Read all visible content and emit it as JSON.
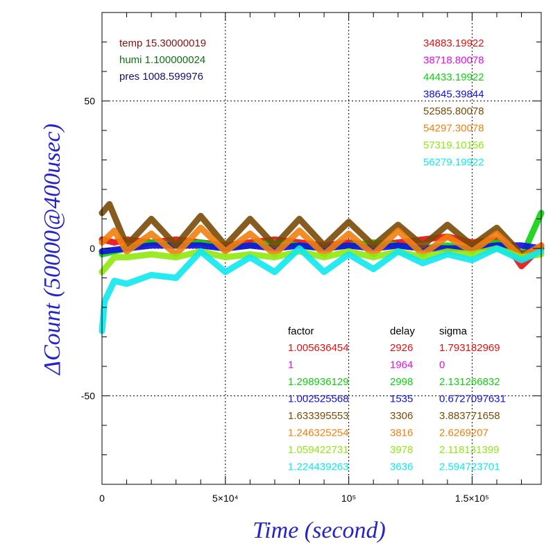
{
  "chart_data": {
    "type": "line",
    "xlabel": "Time (second)",
    "ylabel": "ΔCount (50000@400usec)",
    "xlim": [
      0,
      178000
    ],
    "ylim": [
      -80,
      80
    ],
    "grid": true,
    "x_ticks": [
      {
        "value": 0,
        "label": "0"
      },
      {
        "value": 50000,
        "label": "5×10⁴"
      },
      {
        "value": 100000,
        "label": "10⁵"
      },
      {
        "value": 150000,
        "label": "1.5×10⁵"
      }
    ],
    "y_ticks": [
      {
        "value": 50,
        "label": "50"
      },
      {
        "value": 0,
        "label": "0"
      },
      {
        "value": -50,
        "label": "-50"
      }
    ],
    "env": [
      {
        "text": "temp 15.30000019",
        "color": "#8b1010"
      },
      {
        "text": "humi 1.100000024",
        "color": "#107010"
      },
      {
        "text": "pres 1008.599976",
        "color": "#101070"
      }
    ],
    "table_headers": {
      "factor": "factor",
      "delay": "delay",
      "sigma": "sigma"
    },
    "series": [
      {
        "count": "34883.19922",
        "factor": "1.005636454",
        "delay": "2926",
        "sigma": "1.793182969",
        "color": "#e41010",
        "x": [
          0,
          5000,
          10000,
          20000,
          30000,
          40000,
          50000,
          60000,
          70000,
          80000,
          90000,
          100000,
          110000,
          120000,
          130000,
          140000,
          150000,
          160000,
          165000,
          170000,
          175000,
          178000
        ],
        "y": [
          3,
          2,
          3,
          2,
          3,
          2,
          1,
          2,
          3,
          2,
          1,
          2,
          1,
          2,
          3,
          4,
          2,
          3,
          0,
          -6,
          -2,
          1
        ]
      },
      {
        "count": "38718.80078",
        "factor": "1",
        "delay": "1964",
        "sigma": "0",
        "color": "#e010e0",
        "x": [],
        "y": []
      },
      {
        "count": "44433.19922",
        "factor": "1.298936129",
        "delay": "2998",
        "sigma": "2.131266832",
        "color": "#10d010",
        "x": [
          0,
          5000,
          10000,
          20000,
          30000,
          40000,
          50000,
          60000,
          70000,
          80000,
          90000,
          100000,
          110000,
          120000,
          130000,
          140000,
          150000,
          160000,
          170000,
          178000
        ],
        "y": [
          -2,
          -1,
          0,
          2,
          1,
          2,
          0,
          1,
          2,
          1,
          0,
          1,
          2,
          1,
          0,
          1,
          0,
          2,
          -3,
          12
        ]
      },
      {
        "count": "38645.39844",
        "factor": "1.002525568",
        "delay": "1535",
        "sigma": "0.6727097631",
        "color": "#1010e0",
        "x": [
          0,
          10000,
          20000,
          30000,
          40000,
          50000,
          60000,
          70000,
          80000,
          90000,
          100000,
          110000,
          120000,
          130000,
          140000,
          150000,
          160000,
          170000,
          178000
        ],
        "y": [
          -1,
          0,
          1,
          1,
          1,
          0,
          1,
          0,
          1,
          0,
          1,
          0,
          1,
          0,
          0,
          0,
          1,
          1,
          0
        ]
      },
      {
        "count": "52585.80078",
        "factor": "1.633395553",
        "delay": "3306",
        "sigma": "3.883771658",
        "color": "#7a4a08",
        "x": [
          0,
          3000,
          10000,
          20000,
          30000,
          40000,
          50000,
          60000,
          70000,
          80000,
          90000,
          100000,
          110000,
          120000,
          130000,
          140000,
          150000,
          160000,
          170000,
          178000
        ],
        "y": [
          12,
          15,
          1,
          10,
          1,
          11,
          1,
          10,
          1,
          10,
          1,
          9,
          1,
          8,
          1,
          8,
          1,
          7,
          -2,
          0
        ]
      },
      {
        "count": "54297.30078",
        "factor": "1.246325254",
        "delay": "3816",
        "sigma": "2.6269207",
        "color": "#f08010",
        "x": [
          0,
          5000,
          10000,
          20000,
          30000,
          40000,
          50000,
          60000,
          70000,
          80000,
          90000,
          100000,
          110000,
          120000,
          130000,
          140000,
          150000,
          160000,
          170000,
          178000
        ],
        "y": [
          2,
          6,
          -1,
          5,
          -2,
          7,
          -1,
          5,
          -2,
          6,
          -2,
          5,
          -2,
          6,
          -2,
          4,
          -1,
          5,
          -3,
          1
        ]
      },
      {
        "count": "57319.10156",
        "factor": "1.059422731",
        "delay": "3978",
        "sigma": "2.118131399",
        "color": "#90e810",
        "x": [
          0,
          5000,
          10000,
          20000,
          30000,
          40000,
          50000,
          60000,
          70000,
          80000,
          90000,
          100000,
          110000,
          120000,
          130000,
          140000,
          150000,
          160000,
          170000,
          178000
        ],
        "y": [
          -8,
          -3,
          -3,
          -2,
          -3,
          -1,
          -3,
          -2,
          -3,
          -1,
          -3,
          -1,
          -3,
          -1,
          -3,
          -1,
          -2,
          0,
          -3,
          -2
        ]
      },
      {
        "count": "56279.19922",
        "factor": "1.224439263",
        "delay": "3636",
        "sigma": "2.594723701",
        "color": "#10e8f0",
        "x": [
          0,
          1000,
          5000,
          10000,
          20000,
          30000,
          40000,
          50000,
          60000,
          70000,
          80000,
          90000,
          100000,
          110000,
          120000,
          130000,
          140000,
          150000,
          160000,
          170000,
          178000
        ],
        "y": [
          -28,
          -18,
          -11,
          -12,
          -9,
          -10,
          -1,
          -8,
          -3,
          -8,
          0,
          -8,
          -2,
          -7,
          -1,
          -5,
          -2,
          -4,
          0,
          -4,
          -1
        ]
      }
    ]
  }
}
